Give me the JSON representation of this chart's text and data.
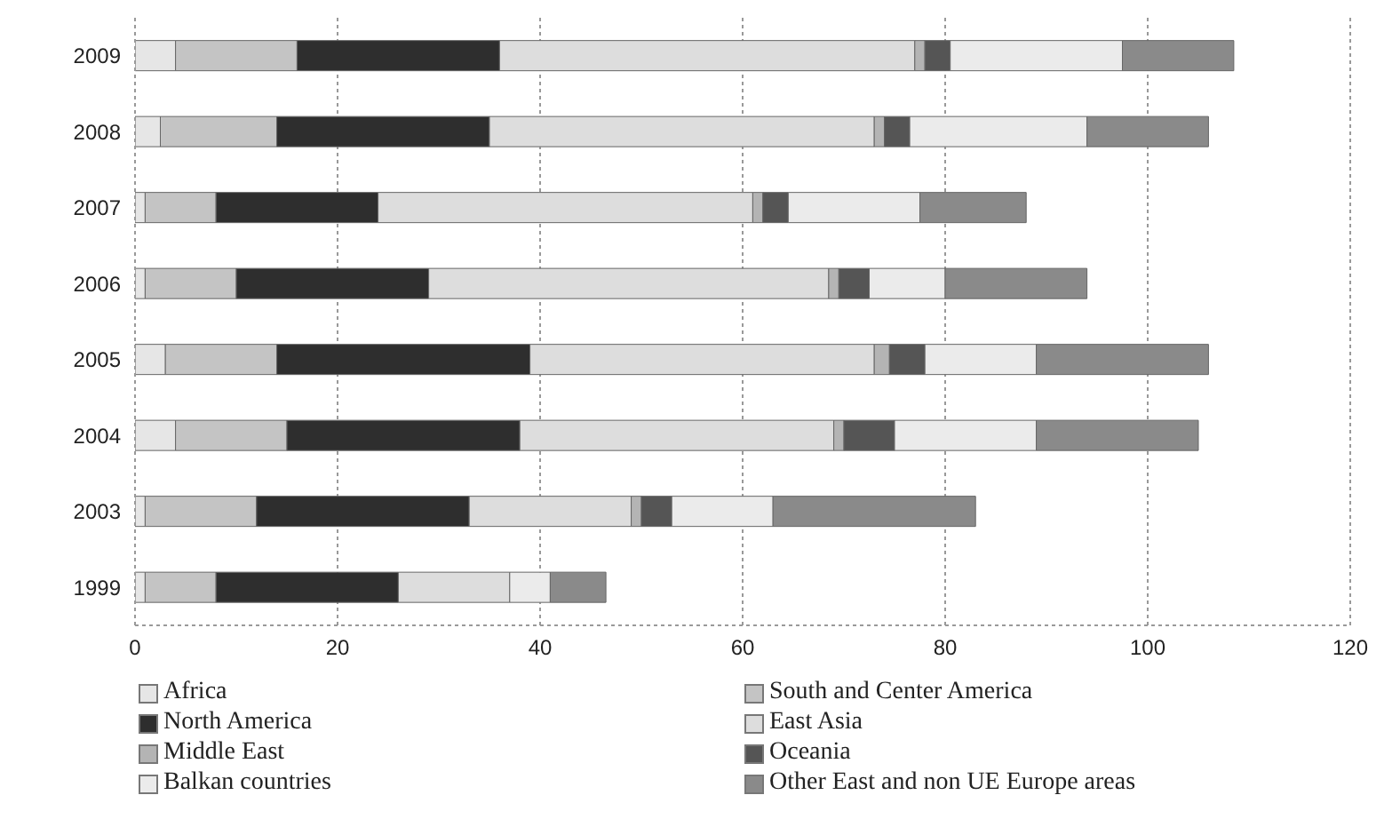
{
  "chart_data": {
    "type": "bar",
    "orientation": "horizontal",
    "stacked": true,
    "categories": [
      "2009",
      "2008",
      "2007",
      "2006",
      "2005",
      "2004",
      "2003",
      "1999"
    ],
    "series": [
      {
        "name": "Africa",
        "color": "#e6e6e6",
        "values": [
          4,
          2.5,
          1,
          1,
          3,
          4,
          1,
          1
        ]
      },
      {
        "name": "South and Center America",
        "color": "#c4c4c4",
        "values": [
          12,
          11.5,
          7,
          9,
          11,
          11,
          11,
          7
        ]
      },
      {
        "name": "North America",
        "color": "#2e2e2e",
        "values": [
          20,
          21,
          16,
          19,
          25,
          23,
          21,
          18
        ]
      },
      {
        "name": "East Asia",
        "color": "#dddddd",
        "values": [
          41,
          38,
          37,
          39.5,
          34,
          31,
          16,
          11
        ]
      },
      {
        "name": "Middle East",
        "color": "#b4b4b4",
        "values": [
          1,
          1,
          1,
          1,
          1.5,
          1,
          1,
          null
        ]
      },
      {
        "name": "Oceania",
        "color": "#555555",
        "values": [
          2.5,
          2.5,
          2.5,
          3,
          3.5,
          5,
          3,
          null
        ]
      },
      {
        "name": "Balkan countries",
        "color": "#ebebeb",
        "values": [
          17,
          17.5,
          13,
          7.5,
          11,
          14,
          10,
          4
        ]
      },
      {
        "name": "Other East and non UE Europe areas",
        "color": "#8a8a8a",
        "values": [
          11,
          12,
          10.5,
          14,
          17,
          16,
          20,
          5.5
        ]
      }
    ],
    "xlim": [
      0,
      120
    ],
    "xticks": [
      0,
      20,
      40,
      60,
      80,
      100,
      120
    ],
    "grid": "x",
    "legend": "bottom"
  }
}
